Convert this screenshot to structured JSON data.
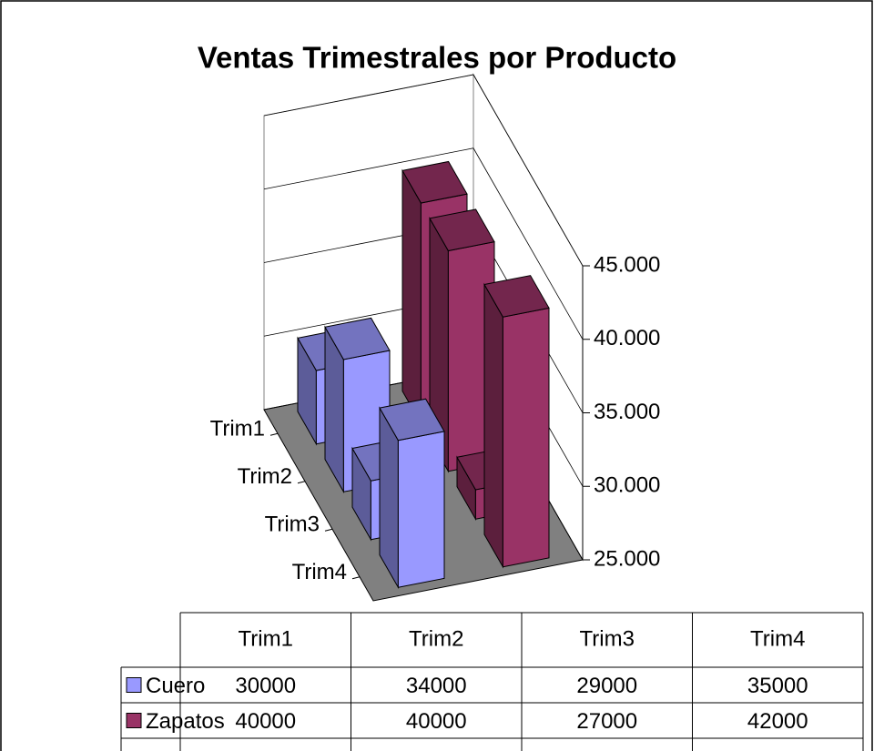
{
  "chart_data": {
    "type": "bar3d",
    "title": "Ventas Trimestrales por Producto",
    "categories": [
      "Trim1",
      "Trim2",
      "Trim3",
      "Trim4"
    ],
    "series": [
      {
        "name": "Cuero",
        "color": "#9999ff",
        "values": [
          30000,
          34000,
          29000,
          35000
        ]
      },
      {
        "name": "Zapatos",
        "color": "#993366",
        "values": [
          40000,
          40000,
          27000,
          42000
        ]
      }
    ],
    "ylim": [
      25000,
      45000
    ],
    "yticks": [
      {
        "value": 25000,
        "label": "25.000"
      },
      {
        "value": 30000,
        "label": "30.000"
      },
      {
        "value": 35000,
        "label": "35.000"
      },
      {
        "value": 40000,
        "label": "40.000"
      },
      {
        "value": 45000,
        "label": "45.000"
      }
    ],
    "grid": true
  }
}
